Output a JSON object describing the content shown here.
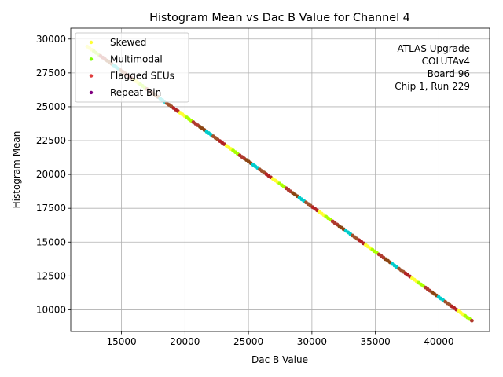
{
  "chart_data": {
    "type": "scatter",
    "title": "Histogram Mean vs Dac B Value for Channel 4",
    "xlabel": "Dac B Value",
    "ylabel": "Histogram Mean",
    "xlim": [
      11000,
      44000
    ],
    "ylim": [
      8400,
      30800
    ],
    "xticks": [
      15000,
      20000,
      25000,
      30000,
      35000,
      40000
    ],
    "yticks": [
      10000,
      12500,
      15000,
      17500,
      20000,
      22500,
      25000,
      27500,
      30000
    ],
    "grid": true,
    "legend_position": "upper-left",
    "annotation": [
      "ATLAS Upgrade",
      "COLUTAv4",
      "Board 96",
      "Chip 1, Run 229"
    ],
    "line": {
      "x_start": 12300,
      "x_end": 42600,
      "y_start": 29450,
      "y_end": 9200
    },
    "point_color_cycle": [
      "#ffff33",
      "#aaff00",
      "#b03a2e",
      "#8b4513",
      "#00cccc",
      "#a0522d",
      "#b22222"
    ],
    "series": [
      {
        "name": "Skewed",
        "color": "#ffff33",
        "x": [],
        "y": []
      },
      {
        "name": "Multimodal",
        "color": "#7fff00",
        "x": [],
        "y": []
      },
      {
        "name": "Flagged SEUs",
        "color": "#e03c3c",
        "x": [],
        "y": []
      },
      {
        "name": "Repeat Bin",
        "color": "#800080",
        "x": [],
        "y": []
      }
    ]
  }
}
